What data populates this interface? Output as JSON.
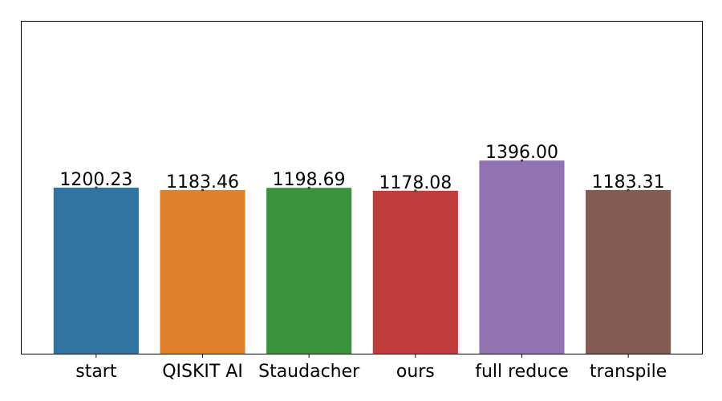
{
  "chart_data": {
    "type": "bar",
    "categories": [
      "start",
      "QISKIT AI",
      "Staudacher",
      "ours",
      "full reduce",
      "transpile"
    ],
    "values": [
      1200.23,
      1183.46,
      1198.69,
      1178.08,
      1396.0,
      1183.31
    ],
    "value_labels": [
      "1200.23",
      "1183.46",
      "1198.69",
      "1178.08",
      "1396.00",
      "1183.31"
    ],
    "errors": [
      8,
      8,
      8,
      8,
      8,
      8
    ],
    "colors": [
      "#3274a1",
      "#e1812c",
      "#3a923a",
      "#c03d3e",
      "#9372b2",
      "#845b53"
    ],
    "title": "",
    "xlabel": "",
    "ylabel": "",
    "ylim": [
      0,
      2400
    ],
    "grid": false,
    "legend": "none",
    "y_ticks_visible": false
  }
}
